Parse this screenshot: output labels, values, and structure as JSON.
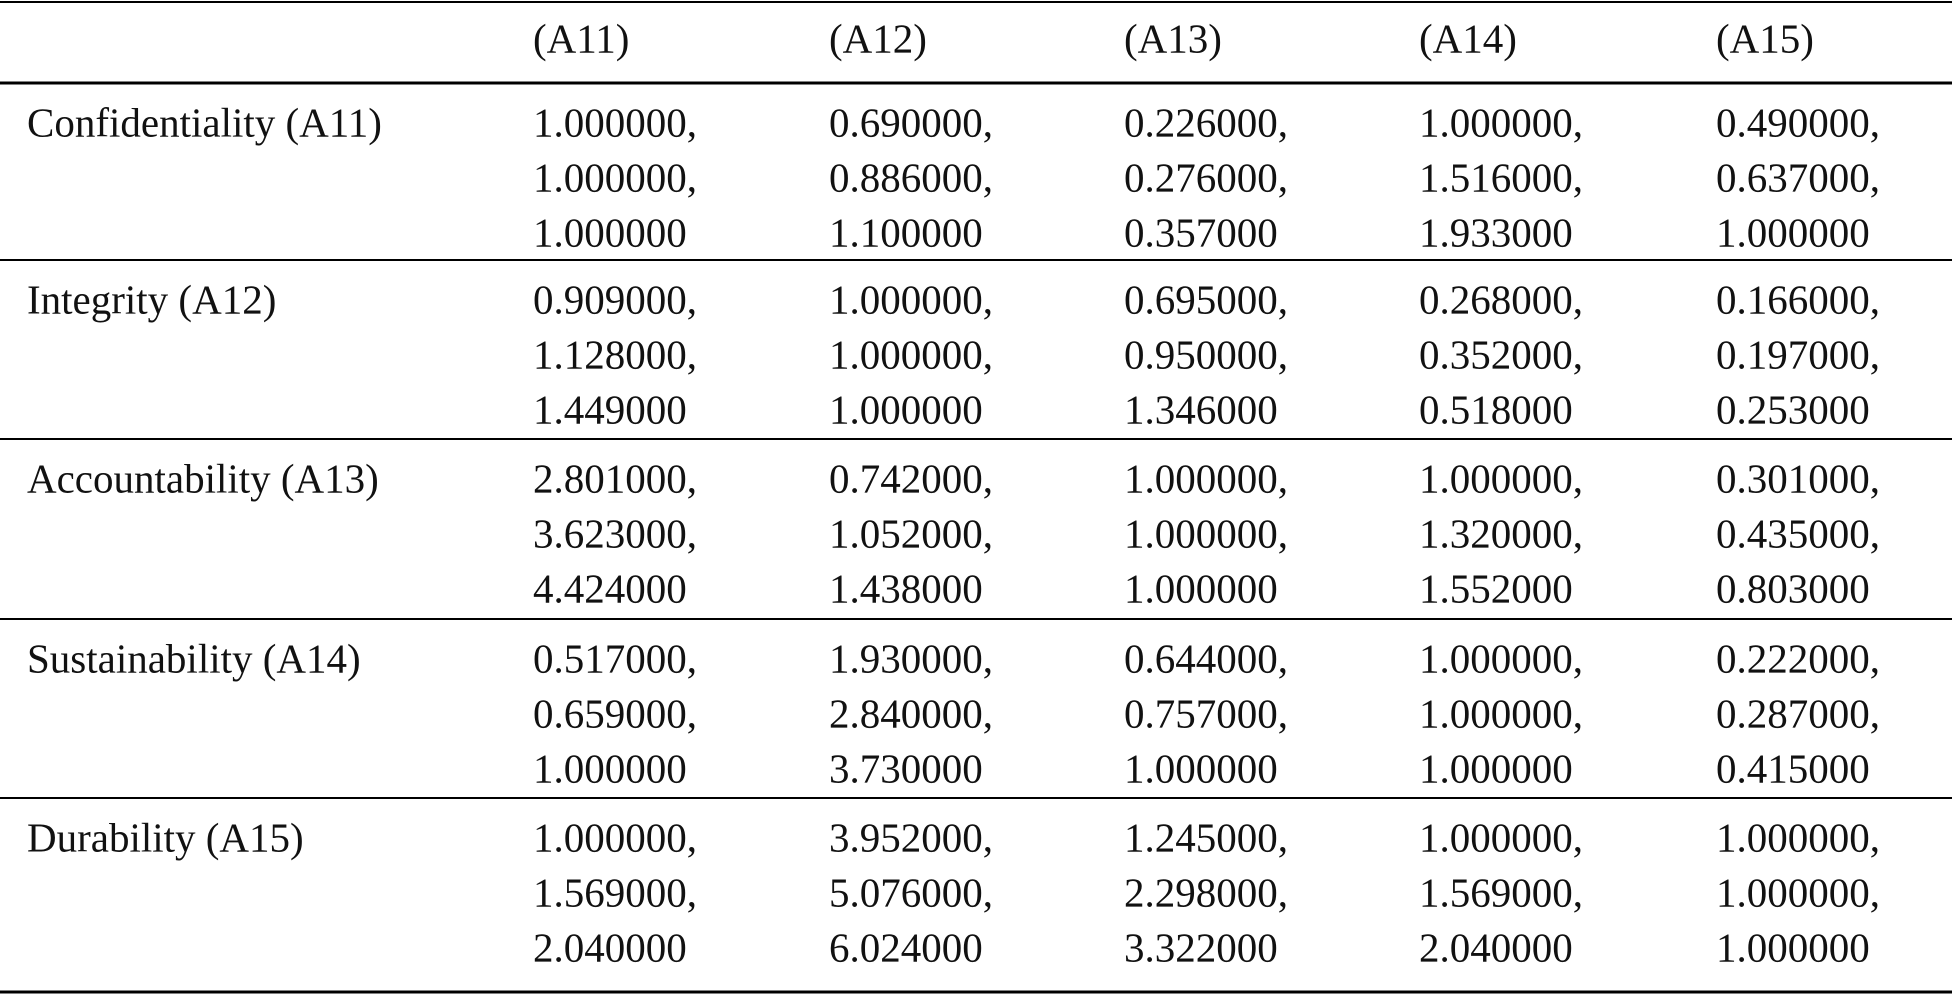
{
  "table": {
    "columns": [
      "(A11)",
      "(A12)",
      "(A13)",
      "(A14)",
      "(A15)"
    ],
    "rows": [
      {
        "label": "Confidentiality (A11)",
        "cells": [
          [
            "1.000000,",
            "1.000000,",
            "1.000000"
          ],
          [
            "0.690000,",
            "0.886000,",
            "1.100000"
          ],
          [
            "0.226000,",
            "0.276000,",
            "0.357000"
          ],
          [
            "1.000000,",
            "1.516000,",
            "1.933000"
          ],
          [
            "0.490000,",
            "0.637000,",
            "1.000000"
          ]
        ]
      },
      {
        "label": "Integrity (A12)",
        "cells": [
          [
            "0.909000,",
            "1.128000,",
            "1.449000"
          ],
          [
            "1.000000,",
            "1.000000,",
            "1.000000"
          ],
          [
            "0.695000,",
            "0.950000,",
            "1.346000"
          ],
          [
            "0.268000,",
            "0.352000,",
            "0.518000"
          ],
          [
            "0.166000,",
            "0.197000,",
            "0.253000"
          ]
        ]
      },
      {
        "label": "Accountability (A13)",
        "cells": [
          [
            "2.801000,",
            "3.623000,",
            "4.424000"
          ],
          [
            "0.742000,",
            "1.052000,",
            "1.438000"
          ],
          [
            "1.000000,",
            "1.000000,",
            "1.000000"
          ],
          [
            "1.000000,",
            "1.320000,",
            "1.552000"
          ],
          [
            "0.301000,",
            "0.435000,",
            "0.803000"
          ]
        ]
      },
      {
        "label": "Sustainability (A14)",
        "cells": [
          [
            "0.517000,",
            "0.659000,",
            "1.000000"
          ],
          [
            "1.930000,",
            "2.840000,",
            "3.730000"
          ],
          [
            "0.644000,",
            "0.757000,",
            "1.000000"
          ],
          [
            "1.000000,",
            "1.000000,",
            "1.000000"
          ],
          [
            "0.222000,",
            "0.287000,",
            "0.415000"
          ]
        ]
      },
      {
        "label": "Durability (A15)",
        "cells": [
          [
            "1.000000,",
            "1.569000,",
            "2.040000"
          ],
          [
            "3.952000,",
            "5.076000,",
            "6.024000"
          ],
          [
            "1.245000,",
            "2.298000,",
            "3.322000"
          ],
          [
            "1.000000,",
            "1.569000,",
            "2.040000"
          ],
          [
            "1.000000,",
            "1.000000,",
            "1.000000"
          ]
        ]
      }
    ]
  }
}
